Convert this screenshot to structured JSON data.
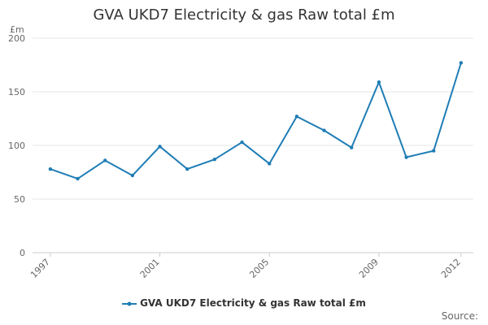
{
  "chart_data": {
    "type": "line",
    "title": "GVA UKD7 Electricity & gas Raw total £m",
    "ylabel": "£m",
    "xlabel": "",
    "ylim": [
      0,
      200
    ],
    "yticks": [
      0,
      50,
      100,
      150,
      200
    ],
    "x": [
      1997,
      1998,
      1999,
      2000,
      2001,
      2002,
      2003,
      2004,
      2005,
      2006,
      2007,
      2008,
      2009,
      2010,
      2011,
      2012
    ],
    "xtick_labels": [
      "1997",
      "2001",
      "2005",
      "2009",
      "2012"
    ],
    "series": [
      {
        "name": "GVA UKD7 Electricity & gas Raw total £m",
        "color": "#1f7db5",
        "values": [
          78,
          69,
          86,
          72,
          99,
          78,
          87,
          103,
          83,
          127,
          114,
          98,
          159,
          89,
          95,
          177
        ]
      }
    ],
    "grid": true,
    "legend_position": "bottom"
  },
  "footer": {
    "source_label": "Source:"
  }
}
